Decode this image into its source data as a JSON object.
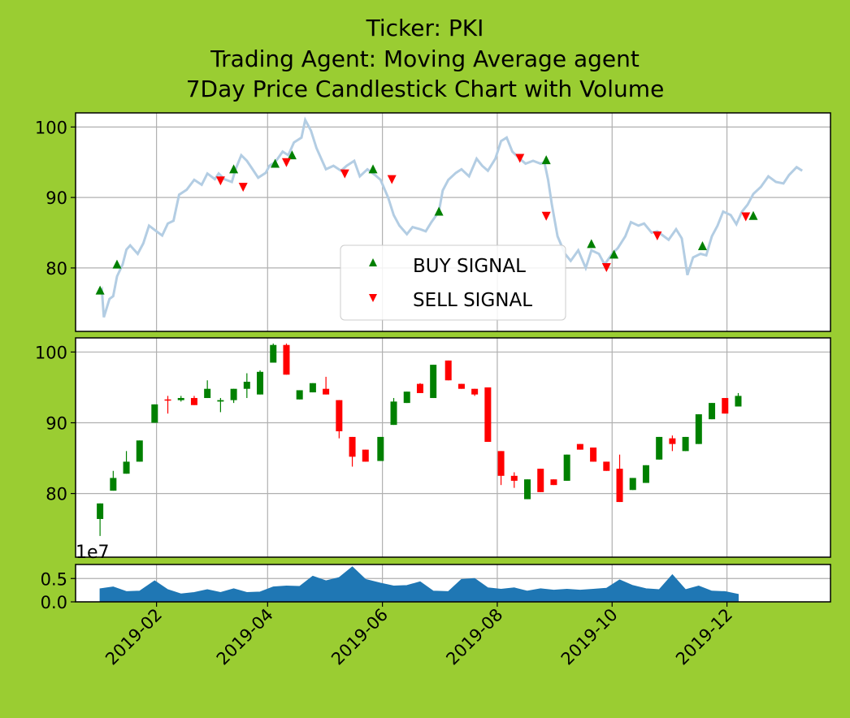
{
  "figure": {
    "title_lines": [
      "Ticker: PKI",
      "Trading Agent: Moving Average agent",
      "7Day Price Candlestick Chart with Volume"
    ],
    "background": "#9acd32"
  },
  "chart_data": [
    {
      "panel": "price-with-signals",
      "type": "line",
      "ylim": [
        71,
        102
      ],
      "yticks": [
        80,
        90,
        100
      ],
      "grid": true,
      "line_color": "#b3cde3",
      "legend": {
        "placement": "lower-center",
        "entries": [
          "BUY SIGNAL",
          "SELL SIGNAL"
        ]
      },
      "price_series": [
        [
          "2019-01-02",
          76.3
        ],
        [
          "2019-01-03",
          76.8
        ],
        [
          "2019-01-04",
          73.0
        ],
        [
          "2019-01-07",
          75.6
        ],
        [
          "2019-01-09",
          76.0
        ],
        [
          "2019-01-11",
          78.8
        ],
        [
          "2019-01-14",
          80.5
        ],
        [
          "2019-01-16",
          82.6
        ],
        [
          "2019-01-18",
          83.2
        ],
        [
          "2019-01-22",
          82.0
        ],
        [
          "2019-01-25",
          83.5
        ],
        [
          "2019-01-28",
          86.0
        ],
        [
          "2019-02-01",
          85.2
        ],
        [
          "2019-02-04",
          84.6
        ],
        [
          "2019-02-07",
          86.3
        ],
        [
          "2019-02-10",
          86.7
        ],
        [
          "2019-02-13",
          90.4
        ],
        [
          "2019-02-17",
          91.1
        ],
        [
          "2019-02-21",
          92.5
        ],
        [
          "2019-02-25",
          91.8
        ],
        [
          "2019-02-28",
          93.4
        ],
        [
          "2019-03-04",
          92.6
        ],
        [
          "2019-03-06",
          93.4
        ],
        [
          "2019-03-09",
          92.6
        ],
        [
          "2019-03-13",
          92.2
        ],
        [
          "2019-03-15",
          94.0
        ],
        [
          "2019-03-18",
          96.0
        ],
        [
          "2019-03-21",
          95.2
        ],
        [
          "2019-03-24",
          94.0
        ],
        [
          "2019-03-27",
          92.8
        ],
        [
          "2019-03-31",
          93.5
        ],
        [
          "2019-04-02",
          94.5
        ],
        [
          "2019-04-05",
          95.0
        ],
        [
          "2019-04-09",
          96.5
        ],
        [
          "2019-04-12",
          96.0
        ],
        [
          "2019-04-15",
          97.8
        ],
        [
          "2019-04-19",
          98.5
        ],
        [
          "2019-04-21",
          101.0
        ],
        [
          "2019-04-24",
          99.5
        ],
        [
          "2019-04-27",
          97.0
        ],
        [
          "2019-05-02",
          94.0
        ],
        [
          "2019-05-06",
          94.5
        ],
        [
          "2019-05-10",
          93.8
        ],
        [
          "2019-05-13",
          94.5
        ],
        [
          "2019-05-17",
          95.2
        ],
        [
          "2019-05-20",
          93.0
        ],
        [
          "2019-05-24",
          94.0
        ],
        [
          "2019-05-28",
          93.2
        ],
        [
          "2019-05-31",
          92.5
        ],
        [
          "2019-06-04",
          90.0
        ],
        [
          "2019-06-07",
          87.5
        ],
        [
          "2019-06-10",
          86.0
        ],
        [
          "2019-06-14",
          84.8
        ],
        [
          "2019-06-17",
          85.8
        ],
        [
          "2019-06-21",
          85.5
        ],
        [
          "2019-06-24",
          85.2
        ],
        [
          "2019-06-27",
          86.5
        ],
        [
          "2019-07-01",
          88.0
        ],
        [
          "2019-07-03",
          91.0
        ],
        [
          "2019-07-06",
          92.5
        ],
        [
          "2019-07-10",
          93.5
        ],
        [
          "2019-07-13",
          94.0
        ],
        [
          "2019-07-17",
          93.0
        ],
        [
          "2019-07-21",
          95.5
        ],
        [
          "2019-07-24",
          94.5
        ],
        [
          "2019-07-27",
          93.8
        ],
        [
          "2019-07-31",
          95.5
        ],
        [
          "2019-08-03",
          98.0
        ],
        [
          "2019-08-06",
          98.5
        ],
        [
          "2019-08-09",
          96.5
        ],
        [
          "2019-08-13",
          95.5
        ],
        [
          "2019-08-16",
          94.8
        ],
        [
          "2019-08-20",
          95.2
        ],
        [
          "2019-08-24",
          94.8
        ],
        [
          "2019-08-26",
          95.0
        ],
        [
          "2019-08-28",
          92.5
        ],
        [
          "2019-08-30",
          89.0
        ],
        [
          "2019-09-02",
          84.5
        ],
        [
          "2019-09-06",
          82.0
        ],
        [
          "2019-09-09",
          81.0
        ],
        [
          "2019-09-13",
          82.5
        ],
        [
          "2019-09-17",
          80.0
        ],
        [
          "2019-09-20",
          82.5
        ],
        [
          "2019-09-24",
          82.0
        ],
        [
          "2019-09-27",
          80.5
        ],
        [
          "2019-10-01",
          82.0
        ],
        [
          "2019-10-04",
          82.8
        ],
        [
          "2019-10-08",
          84.5
        ],
        [
          "2019-10-11",
          86.5
        ],
        [
          "2019-10-15",
          86.0
        ],
        [
          "2019-10-18",
          86.3
        ],
        [
          "2019-10-22",
          85.0
        ],
        [
          "2019-10-25",
          85.2
        ],
        [
          "2019-10-28",
          84.6
        ],
        [
          "2019-10-31",
          84.0
        ],
        [
          "2019-11-04",
          85.5
        ],
        [
          "2019-11-07",
          84.2
        ],
        [
          "2019-11-10",
          79.0
        ],
        [
          "2019-11-13",
          81.5
        ],
        [
          "2019-11-17",
          82.0
        ],
        [
          "2019-11-20",
          81.8
        ],
        [
          "2019-11-23",
          84.5
        ],
        [
          "2019-11-26",
          86.0
        ],
        [
          "2019-11-29",
          88.0
        ],
        [
          "2019-12-03",
          87.5
        ],
        [
          "2019-12-06",
          86.2
        ],
        [
          "2019-12-09",
          88.0
        ],
        [
          "2019-12-12",
          89.0
        ],
        [
          "2019-12-15",
          90.5
        ],
        [
          "2019-12-19",
          91.5
        ],
        [
          "2019-12-23",
          93.0
        ],
        [
          "2019-12-27",
          92.2
        ],
        [
          "2019-12-31",
          92.0
        ],
        [
          "2020-01-03",
          93.2
        ],
        [
          "2020-01-07",
          94.3
        ],
        [
          "2020-01-10",
          93.8
        ]
      ],
      "buy_signals": [
        [
          "2019-01-02",
          76.8
        ],
        [
          "2019-01-11",
          80.5
        ],
        [
          "2019-03-14",
          94.0
        ],
        [
          "2019-04-05",
          94.8
        ],
        [
          "2019-04-14",
          96.0
        ],
        [
          "2019-05-27",
          94.0
        ],
        [
          "2019-07-01",
          88.0
        ],
        [
          "2019-08-27",
          95.3
        ],
        [
          "2019-09-20",
          83.4
        ],
        [
          "2019-10-02",
          81.9
        ],
        [
          "2019-11-18",
          83.1
        ],
        [
          "2019-12-15",
          87.4
        ]
      ],
      "sell_signals": [
        [
          "2019-03-07",
          92.4
        ],
        [
          "2019-03-19",
          91.5
        ],
        [
          "2019-04-11",
          95.0
        ],
        [
          "2019-05-12",
          93.4
        ],
        [
          "2019-06-06",
          92.6
        ],
        [
          "2019-08-13",
          95.6
        ],
        [
          "2019-08-27",
          87.4
        ],
        [
          "2019-09-28",
          80.1
        ],
        [
          "2019-10-25",
          84.6
        ],
        [
          "2019-12-11",
          87.3
        ]
      ]
    },
    {
      "panel": "candlestick",
      "type": "candlestick",
      "ylim": [
        71,
        102
      ],
      "yticks": [
        80,
        90,
        100
      ],
      "grid": true,
      "up_color": "#008000",
      "down_color": "#ff0000",
      "candles": [
        [
          "2019-01-02",
          76.4,
          78.6,
          74.0,
          78.6
        ],
        [
          "2019-01-09",
          80.4,
          82.2,
          80.4,
          83.2
        ],
        [
          "2019-01-16",
          82.8,
          84.5,
          82.8,
          86.0
        ],
        [
          "2019-01-23",
          84.5,
          87.5,
          84.5,
          87.5
        ],
        [
          "2019-01-31",
          90.0,
          92.6,
          90.0,
          92.6
        ],
        [
          "2019-02-07",
          93.3,
          93.2,
          91.3,
          93.8
        ],
        [
          "2019-02-14",
          93.2,
          93.5,
          93.0,
          93.8
        ],
        [
          "2019-02-21",
          93.5,
          92.5,
          92.5,
          93.8
        ],
        [
          "2019-02-28",
          93.5,
          94.8,
          93.5,
          96.0
        ],
        [
          "2019-03-07",
          93.0,
          93.2,
          91.5,
          93.5
        ],
        [
          "2019-03-14",
          93.2,
          94.8,
          92.8,
          94.8
        ],
        [
          "2019-03-21",
          94.8,
          95.8,
          93.5,
          97.0
        ],
        [
          "2019-03-28",
          94.0,
          97.2,
          94.0,
          97.4
        ],
        [
          "2019-04-04",
          98.5,
          101.0,
          98.5,
          101.2
        ],
        [
          "2019-04-11",
          101.0,
          96.8,
          96.8,
          101.2
        ],
        [
          "2019-04-18",
          93.3,
          94.6,
          93.3,
          94.6
        ],
        [
          "2019-04-25",
          94.3,
          95.6,
          94.3,
          95.6
        ],
        [
          "2019-05-02",
          94.8,
          94.0,
          94.0,
          96.5
        ],
        [
          "2019-05-09",
          93.2,
          88.8,
          87.8,
          93.2
        ],
        [
          "2019-05-16",
          88.0,
          85.2,
          83.8,
          88.0
        ],
        [
          "2019-05-23",
          86.2,
          84.5,
          84.5,
          86.2
        ],
        [
          "2019-05-31",
          84.6,
          88.0,
          84.6,
          88.0
        ],
        [
          "2019-06-07",
          89.7,
          93.0,
          89.7,
          93.5
        ],
        [
          "2019-06-14",
          92.8,
          94.4,
          92.8,
          94.4
        ],
        [
          "2019-06-21",
          95.5,
          94.2,
          94.2,
          95.6
        ],
        [
          "2019-06-28",
          93.5,
          98.2,
          93.5,
          98.2
        ],
        [
          "2019-07-06",
          98.8,
          96.0,
          96.0,
          98.8
        ],
        [
          "2019-07-13",
          95.5,
          94.8,
          94.8,
          95.5
        ],
        [
          "2019-07-20",
          94.8,
          94.0,
          93.8,
          94.8
        ],
        [
          "2019-07-27",
          95.0,
          87.3,
          87.3,
          95.0
        ],
        [
          "2019-08-03",
          86.0,
          82.5,
          81.2,
          86.0
        ],
        [
          "2019-08-10",
          82.5,
          81.8,
          80.8,
          83.0
        ],
        [
          "2019-08-17",
          79.2,
          82.0,
          79.2,
          82.0
        ],
        [
          "2019-08-24",
          83.5,
          80.2,
          80.2,
          83.5
        ],
        [
          "2019-08-31",
          82.0,
          81.2,
          81.2,
          82.0
        ],
        [
          "2019-09-07",
          81.8,
          85.5,
          81.8,
          85.5
        ],
        [
          "2019-09-14",
          87.0,
          86.2,
          86.2,
          87.0
        ],
        [
          "2019-09-21",
          86.5,
          84.5,
          84.5,
          86.5
        ],
        [
          "2019-09-28",
          84.5,
          83.2,
          83.2,
          84.5
        ],
        [
          "2019-10-05",
          83.5,
          78.8,
          78.8,
          85.5
        ],
        [
          "2019-10-12",
          80.5,
          82.2,
          80.5,
          82.2
        ],
        [
          "2019-10-19",
          81.5,
          84.0,
          81.5,
          84.0
        ],
        [
          "2019-10-26",
          84.8,
          88.0,
          84.8,
          88.0
        ],
        [
          "2019-11-02",
          87.8,
          87.0,
          86.0,
          88.2
        ],
        [
          "2019-11-09",
          86.0,
          88.0,
          86.0,
          88.0
        ],
        [
          "2019-11-16",
          87.0,
          91.2,
          87.0,
          91.2
        ],
        [
          "2019-11-23",
          90.5,
          92.8,
          90.5,
          92.8
        ],
        [
          "2019-11-30",
          93.5,
          91.3,
          91.3,
          93.5
        ],
        [
          "2019-12-07",
          92.3,
          93.8,
          92.3,
          94.2
        ]
      ]
    },
    {
      "panel": "volume",
      "type": "area",
      "ylabel_offset": "1e7",
      "ylim": [
        0,
        0.8
      ],
      "yticks": [
        0.0,
        0.5
      ],
      "grid": true,
      "fill_color": "#1f77b4",
      "x": [
        "2019-01-02",
        "2019-01-09",
        "2019-01-16",
        "2019-01-23",
        "2019-01-31",
        "2019-02-07",
        "2019-02-14",
        "2019-02-21",
        "2019-02-28",
        "2019-03-07",
        "2019-03-14",
        "2019-03-21",
        "2019-03-28",
        "2019-04-04",
        "2019-04-11",
        "2019-04-18",
        "2019-04-25",
        "2019-05-02",
        "2019-05-09",
        "2019-05-16",
        "2019-05-23",
        "2019-05-31",
        "2019-06-07",
        "2019-06-14",
        "2019-06-21",
        "2019-06-28",
        "2019-07-06",
        "2019-07-13",
        "2019-07-20",
        "2019-07-27",
        "2019-08-03",
        "2019-08-10",
        "2019-08-17",
        "2019-08-24",
        "2019-08-31",
        "2019-09-07",
        "2019-09-14",
        "2019-09-21",
        "2019-09-28",
        "2019-10-05",
        "2019-10-12",
        "2019-10-19",
        "2019-10-26",
        "2019-11-02",
        "2019-11-09",
        "2019-11-16",
        "2019-11-23",
        "2019-11-30",
        "2019-12-07"
      ],
      "values": [
        0.28,
        0.32,
        0.22,
        0.23,
        0.45,
        0.26,
        0.17,
        0.2,
        0.26,
        0.2,
        0.28,
        0.2,
        0.21,
        0.32,
        0.34,
        0.33,
        0.55,
        0.45,
        0.52,
        0.75,
        0.48,
        0.4,
        0.34,
        0.35,
        0.43,
        0.23,
        0.22,
        0.48,
        0.5,
        0.3,
        0.27,
        0.3,
        0.23,
        0.28,
        0.25,
        0.27,
        0.25,
        0.27,
        0.29,
        0.47,
        0.35,
        0.28,
        0.26,
        0.58,
        0.26,
        0.34,
        0.23,
        0.22,
        0.16
      ]
    }
  ],
  "x_axis": {
    "ticks": [
      "2019-02",
      "2019-04",
      "2019-06",
      "2019-08",
      "2019-10",
      "2019-12"
    ],
    "range": [
      "2018-12-20",
      "2020-01-25"
    ]
  }
}
